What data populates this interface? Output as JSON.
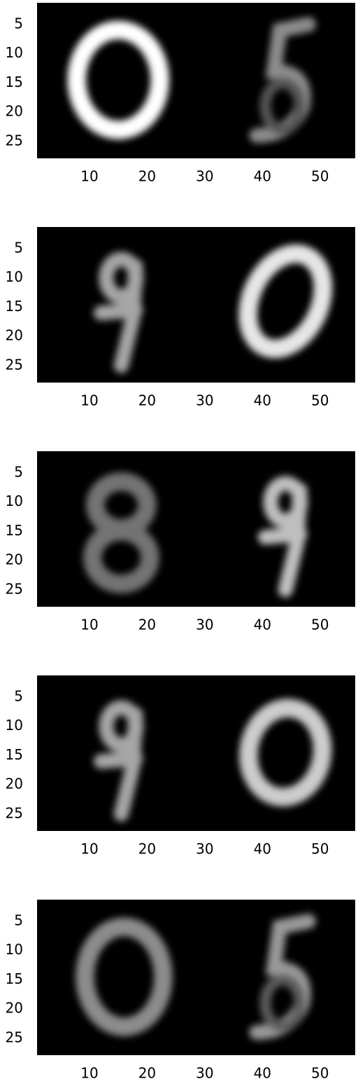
{
  "chart_data": [
    {
      "type": "image",
      "cmap": "gray",
      "xlim": [
        0.9,
        56.1
      ],
      "ylim": [
        27.9,
        1.3
      ],
      "xticks": [
        10,
        20,
        30,
        40,
        50
      ],
      "yticks": [
        5,
        10,
        15,
        20,
        25
      ]
    },
    {
      "type": "image",
      "cmap": "gray",
      "xlim": [
        0.9,
        56.1
      ],
      "ylim": [
        27.9,
        1.3
      ],
      "xticks": [
        10,
        20,
        30,
        40,
        50
      ],
      "yticks": [
        5,
        10,
        15,
        20,
        25
      ]
    },
    {
      "type": "image",
      "cmap": "gray",
      "xlim": [
        0.9,
        56.1
      ],
      "ylim": [
        27.9,
        1.3
      ],
      "xticks": [
        10,
        20,
        30,
        40,
        50
      ],
      "yticks": [
        5,
        10,
        15,
        20,
        25
      ]
    },
    {
      "type": "image",
      "cmap": "gray",
      "xlim": [
        0.9,
        56.1
      ],
      "ylim": [
        27.9,
        1.3
      ],
      "xticks": [
        10,
        20,
        30,
        40,
        50
      ],
      "yticks": [
        5,
        10,
        15,
        20,
        25
      ]
    },
    {
      "type": "image",
      "cmap": "gray",
      "xlim": [
        0.9,
        56.1
      ],
      "ylim": [
        27.9,
        1.3
      ],
      "xticks": [
        10,
        20,
        30,
        40,
        50
      ],
      "yticks": [
        5,
        10,
        15,
        20,
        25
      ]
    }
  ]
}
